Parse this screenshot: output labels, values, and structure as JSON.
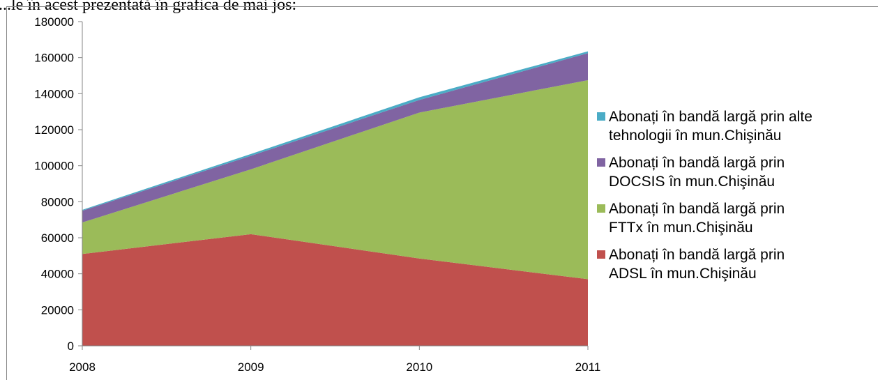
{
  "document": {
    "heading_fragment": "...le în acest prezentată în grafica de mai jos:"
  },
  "chart_data": {
    "type": "area",
    "stacked": true,
    "x": [
      "2008",
      "2009",
      "2010",
      "2011"
    ],
    "ylim": [
      0,
      180000
    ],
    "yticks": [
      0,
      20000,
      40000,
      60000,
      80000,
      100000,
      120000,
      140000,
      160000,
      180000
    ],
    "yticks_labels": [
      "0",
      "20000",
      "40000",
      "60000",
      "80000",
      "100000",
      "120000",
      "140000",
      "160000",
      "180000"
    ],
    "grid": false,
    "legend_position": "right",
    "series": [
      {
        "name": "Abonați în bandă largă prin ADSL în mun.Chişinău",
        "legend_lines": [
          "Abonați în bandă largă prin",
          "ADSL în mun.Chişinău"
        ],
        "color": "#c0504d",
        "values": [
          51000,
          62000,
          48500,
          37000
        ]
      },
      {
        "name": "Abonați în bandă largă prin FTTx în mun.Chişinău",
        "legend_lines": [
          "Abonați în bandă largă prin",
          "FTTx în mun.Chişinău"
        ],
        "color": "#9bbb59",
        "values": [
          17500,
          36000,
          81000,
          110500
        ]
      },
      {
        "name": "Abonați în bandă largă prin DOCSIS în mun.Chişinău",
        "legend_lines": [
          "Abonați în bandă largă prin",
          "DOCSIS în mun.Chişinău"
        ],
        "color": "#8064a2",
        "values": [
          6500,
          7500,
          7000,
          15000
        ]
      },
      {
        "name": "Abonați în bandă largă prin alte tehnologii în mun.Chişinău",
        "legend_lines": [
          "Abonați în bandă largă prin alte",
          "tehnologii în mun.Chişinău"
        ],
        "color": "#4bacc6",
        "values": [
          500,
          1000,
          1500,
          1000
        ]
      }
    ]
  }
}
